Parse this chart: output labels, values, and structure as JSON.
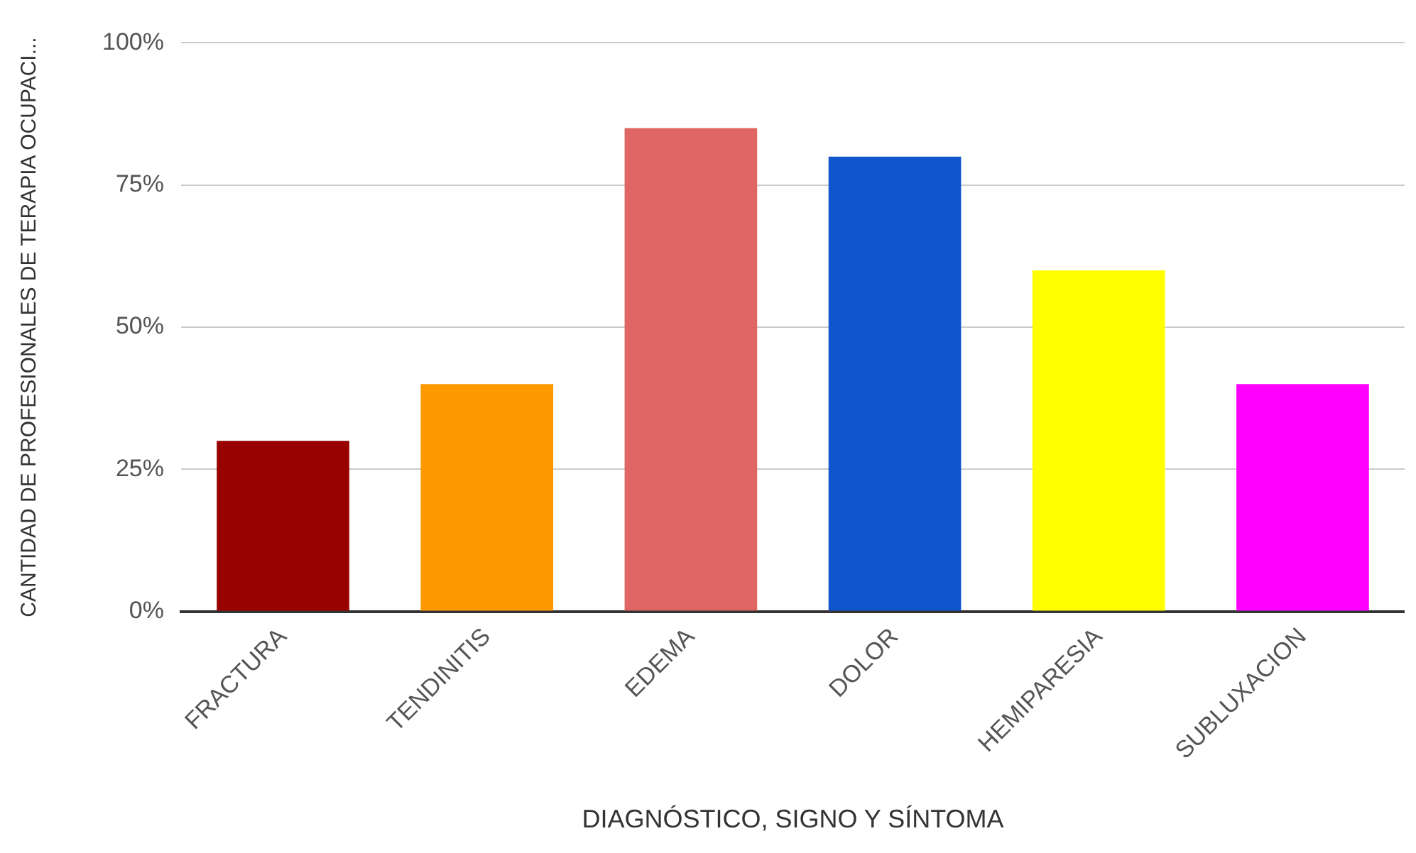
{
  "chart_data": {
    "type": "bar",
    "xlabel": "DIAGNÓSTICO, SIGNO Y SÍNTOMA",
    "ylabel": "CANTIDAD DE PROFESIONALES DE TERAPIA OCUPACI...",
    "categories": [
      "FRACTURA",
      "TENDINITIS",
      "EDEMA",
      "DOLOR",
      "HEMIPARESIA",
      "SUBLUXACION"
    ],
    "values": [
      30,
      40,
      85,
      80,
      60,
      40
    ],
    "colors": [
      "#990000",
      "#ff9900",
      "#e06666",
      "#1155cc",
      "#ffff00",
      "#ff00ff"
    ],
    "ylim": [
      0,
      100
    ],
    "yticks": [
      {
        "value": 0,
        "label": "0%"
      },
      {
        "value": 25,
        "label": "25%"
      },
      {
        "value": 50,
        "label": "50%"
      },
      {
        "value": 75,
        "label": "75%"
      },
      {
        "value": 100,
        "label": "100%"
      }
    ],
    "grid": "y",
    "legend": false
  }
}
